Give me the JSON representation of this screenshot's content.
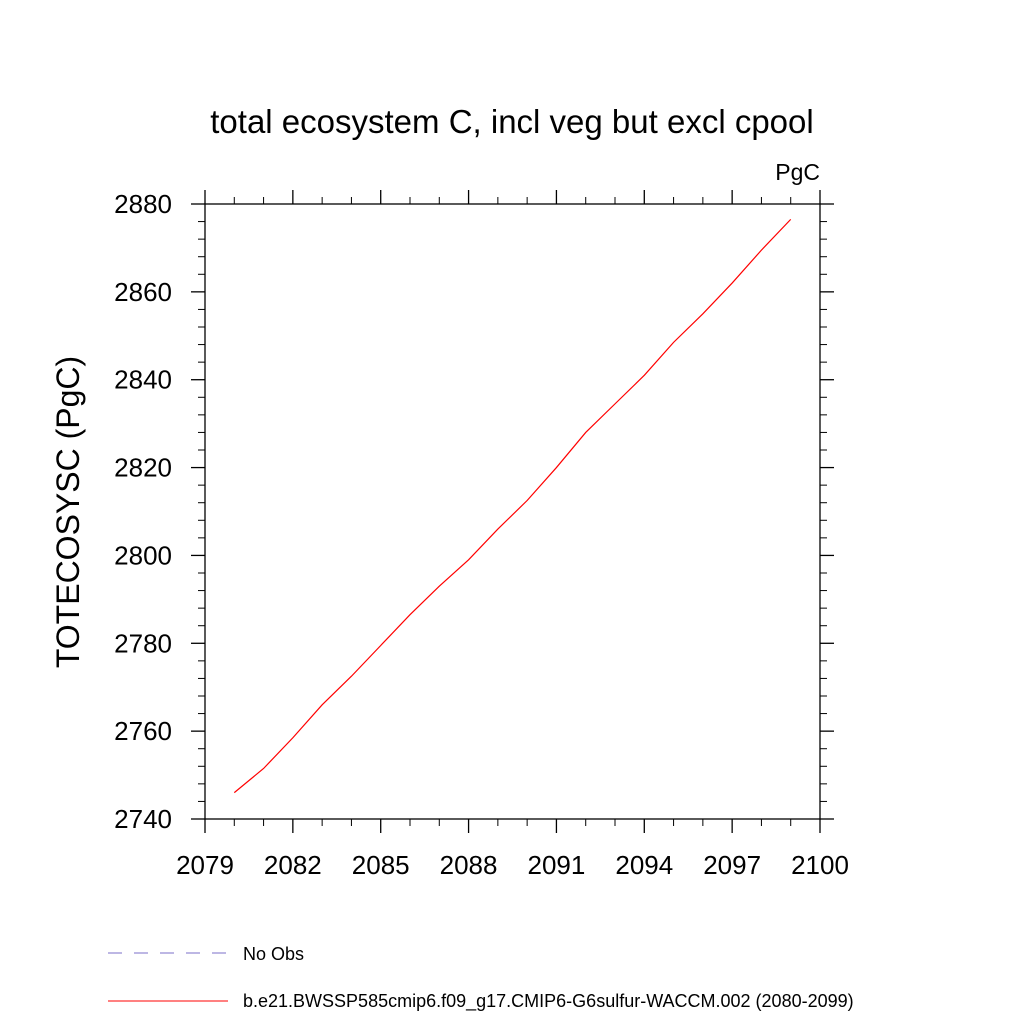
{
  "chart_data": {
    "type": "line",
    "title": "total ecosystem C, incl veg but excl cpool",
    "units_label": "PgC",
    "ylabel": "TOTECOSYSC  (PgC)",
    "xlabel": "",
    "xlim": [
      2079,
      2100
    ],
    "ylim": [
      2740,
      2880
    ],
    "x_ticks": [
      2079,
      2082,
      2085,
      2088,
      2091,
      2094,
      2097,
      2100
    ],
    "x_tick_labels": [
      "2079",
      "2082",
      "2085",
      "2088",
      "2091",
      "2094",
      "2097",
      "2100"
    ],
    "y_ticks": [
      2740,
      2760,
      2780,
      2800,
      2820,
      2840,
      2860,
      2880
    ],
    "y_tick_labels": [
      "2740",
      "2760",
      "2780",
      "2800",
      "2820",
      "2840",
      "2860",
      "2880"
    ],
    "grid": false,
    "legend_position": "bottom-left",
    "series": [
      {
        "name": "b.e21.BWSSP585cmip6.f09_g17.CMIP6-G6sulfur-WACCM.002 (2080-2099)",
        "color": "#ff0000",
        "line_style": "solid",
        "x": [
          2080,
          2081,
          2082,
          2083,
          2084,
          2085,
          2086,
          2087,
          2088,
          2089,
          2090,
          2091,
          2092,
          2093,
          2094,
          2095,
          2096,
          2097,
          2098,
          2099
        ],
        "values": [
          2746,
          2751.5,
          2758.5,
          2766,
          2772.5,
          2779.5,
          2786.5,
          2793,
          2799,
          2806,
          2812.5,
          2820,
          2828,
          2834.5,
          2841,
          2848.5,
          2855,
          2862,
          2869.5,
          2876.5
        ]
      }
    ],
    "legend": [
      {
        "label": "No Obs",
        "color": "#7b6fc9",
        "line_style": "dashed"
      },
      {
        "label": "b.e21.BWSSP585cmip6.f09_g17.CMIP6-G6sulfur-WACCM.002 (2080-2099)",
        "color": "#ff0000",
        "line_style": "solid"
      }
    ]
  }
}
